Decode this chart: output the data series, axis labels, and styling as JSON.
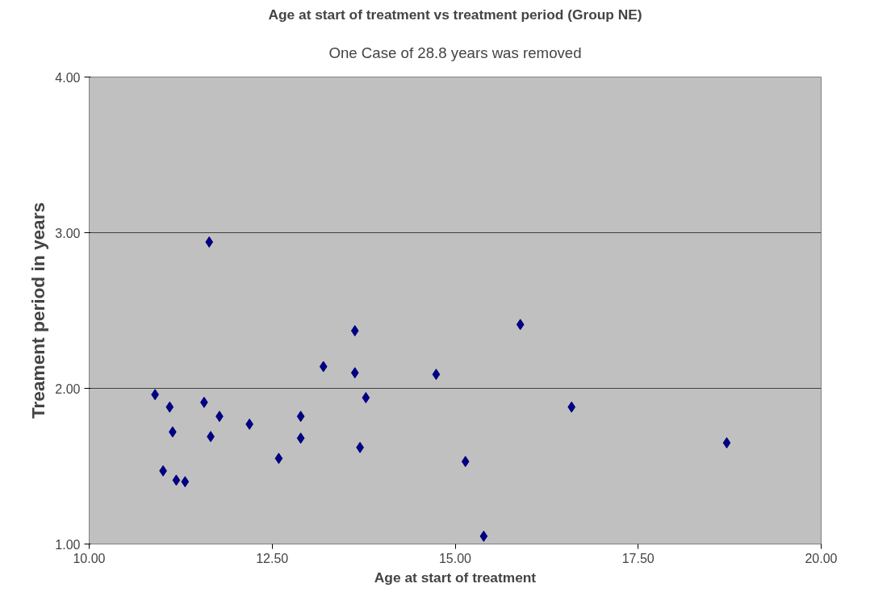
{
  "chart_data": {
    "type": "scatter",
    "title": "Age at start of treatment vs treatment period (Group NE)",
    "subtitle": "One Case of 28.8 years was removed",
    "xlabel": "Age at start of treatment",
    "ylabel": "Treament period in years",
    "x": [
      11.64,
      10.9,
      11.1,
      11.14,
      11.01,
      11.19,
      11.31,
      11.57,
      11.66,
      11.78,
      12.19,
      12.59,
      12.89,
      12.89,
      13.2,
      13.63,
      13.63,
      13.78,
      13.7,
      14.74,
      15.89,
      16.59,
      15.14,
      15.39,
      18.71
    ],
    "series": [
      {
        "color": "#000080",
        "values": [
          2.94,
          1.96,
          1.88,
          1.72,
          1.47,
          1.41,
          1.4,
          1.91,
          1.69,
          1.82,
          1.77,
          1.55,
          1.82,
          1.68,
          2.14,
          2.37,
          2.1,
          1.94,
          1.62,
          2.09,
          2.41,
          1.88,
          1.53,
          1.05,
          1.65
        ]
      }
    ],
    "xlim": [
      10,
      20
    ],
    "ylim": [
      1,
      4
    ],
    "xticks": [
      {
        "value": 10,
        "label": "10.00"
      },
      {
        "value": 12.5,
        "label": "12.50"
      },
      {
        "value": 15,
        "label": "15.00"
      },
      {
        "value": 17.5,
        "label": "17.50"
      },
      {
        "value": 20,
        "label": "20.00"
      }
    ],
    "yticks": [
      {
        "value": 1,
        "label": "1.00"
      },
      {
        "value": 2,
        "label": "2.00"
      },
      {
        "value": 3,
        "label": "3.00"
      },
      {
        "value": 4,
        "label": "4.00"
      }
    ],
    "grid": "y",
    "marker": "diamond"
  }
}
